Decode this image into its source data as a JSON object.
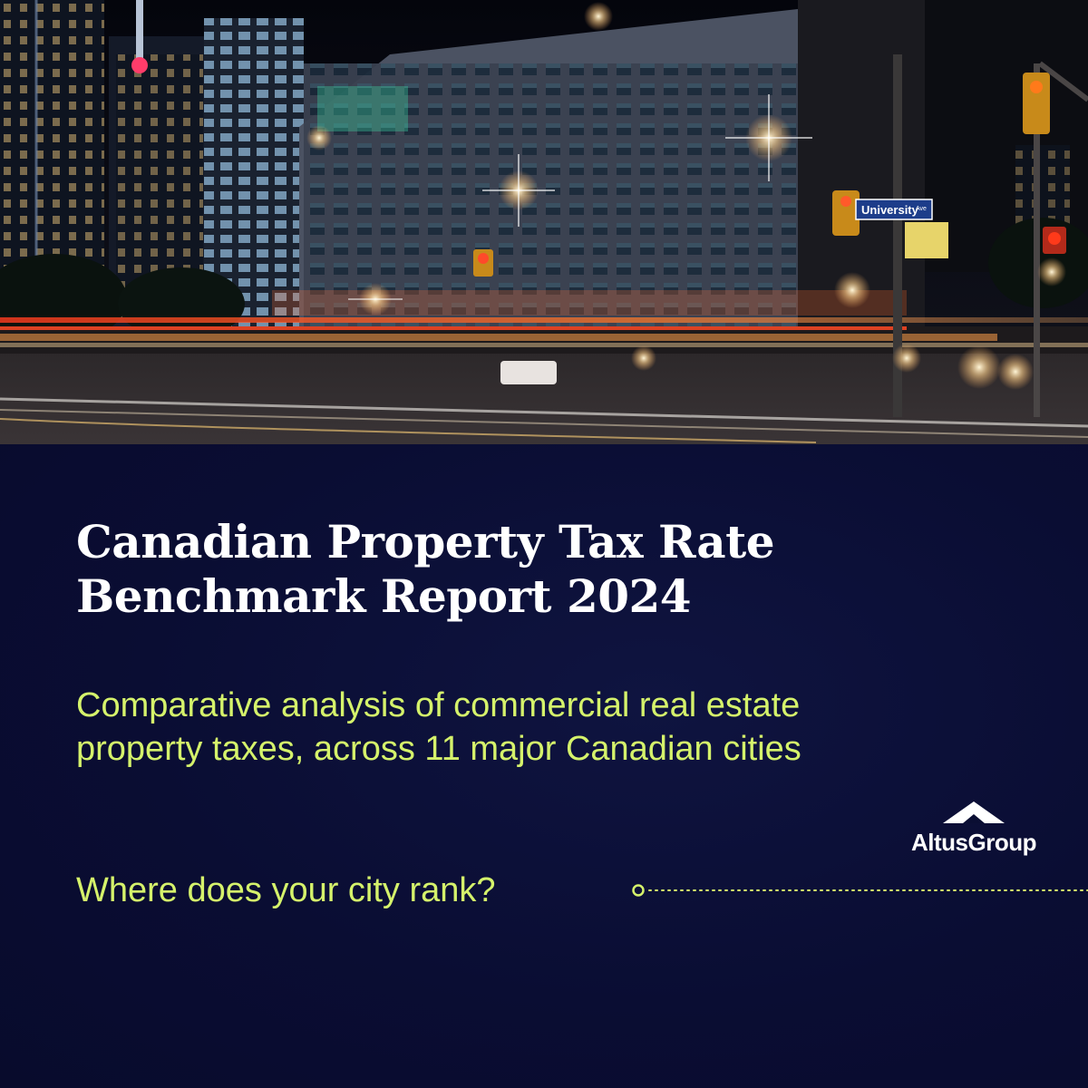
{
  "hero": {
    "street_sign": "University",
    "street_sign_suffix": "Ave"
  },
  "report": {
    "title_line1": "Canadian Property Tax Rate",
    "title_line2": "Benchmark Report 2024",
    "subtitle_line1": "Comparative analysis of commercial real estate",
    "subtitle_line2": "property taxes, across 11 major Canadian cities",
    "cta": "Where does your city rank?"
  },
  "brand": {
    "name": "AltusGroup",
    "logo_icon": "altus-roof-icon"
  },
  "colors": {
    "background": "#0a0e33",
    "accent": "#d5f26b",
    "title": "#ffffff"
  }
}
